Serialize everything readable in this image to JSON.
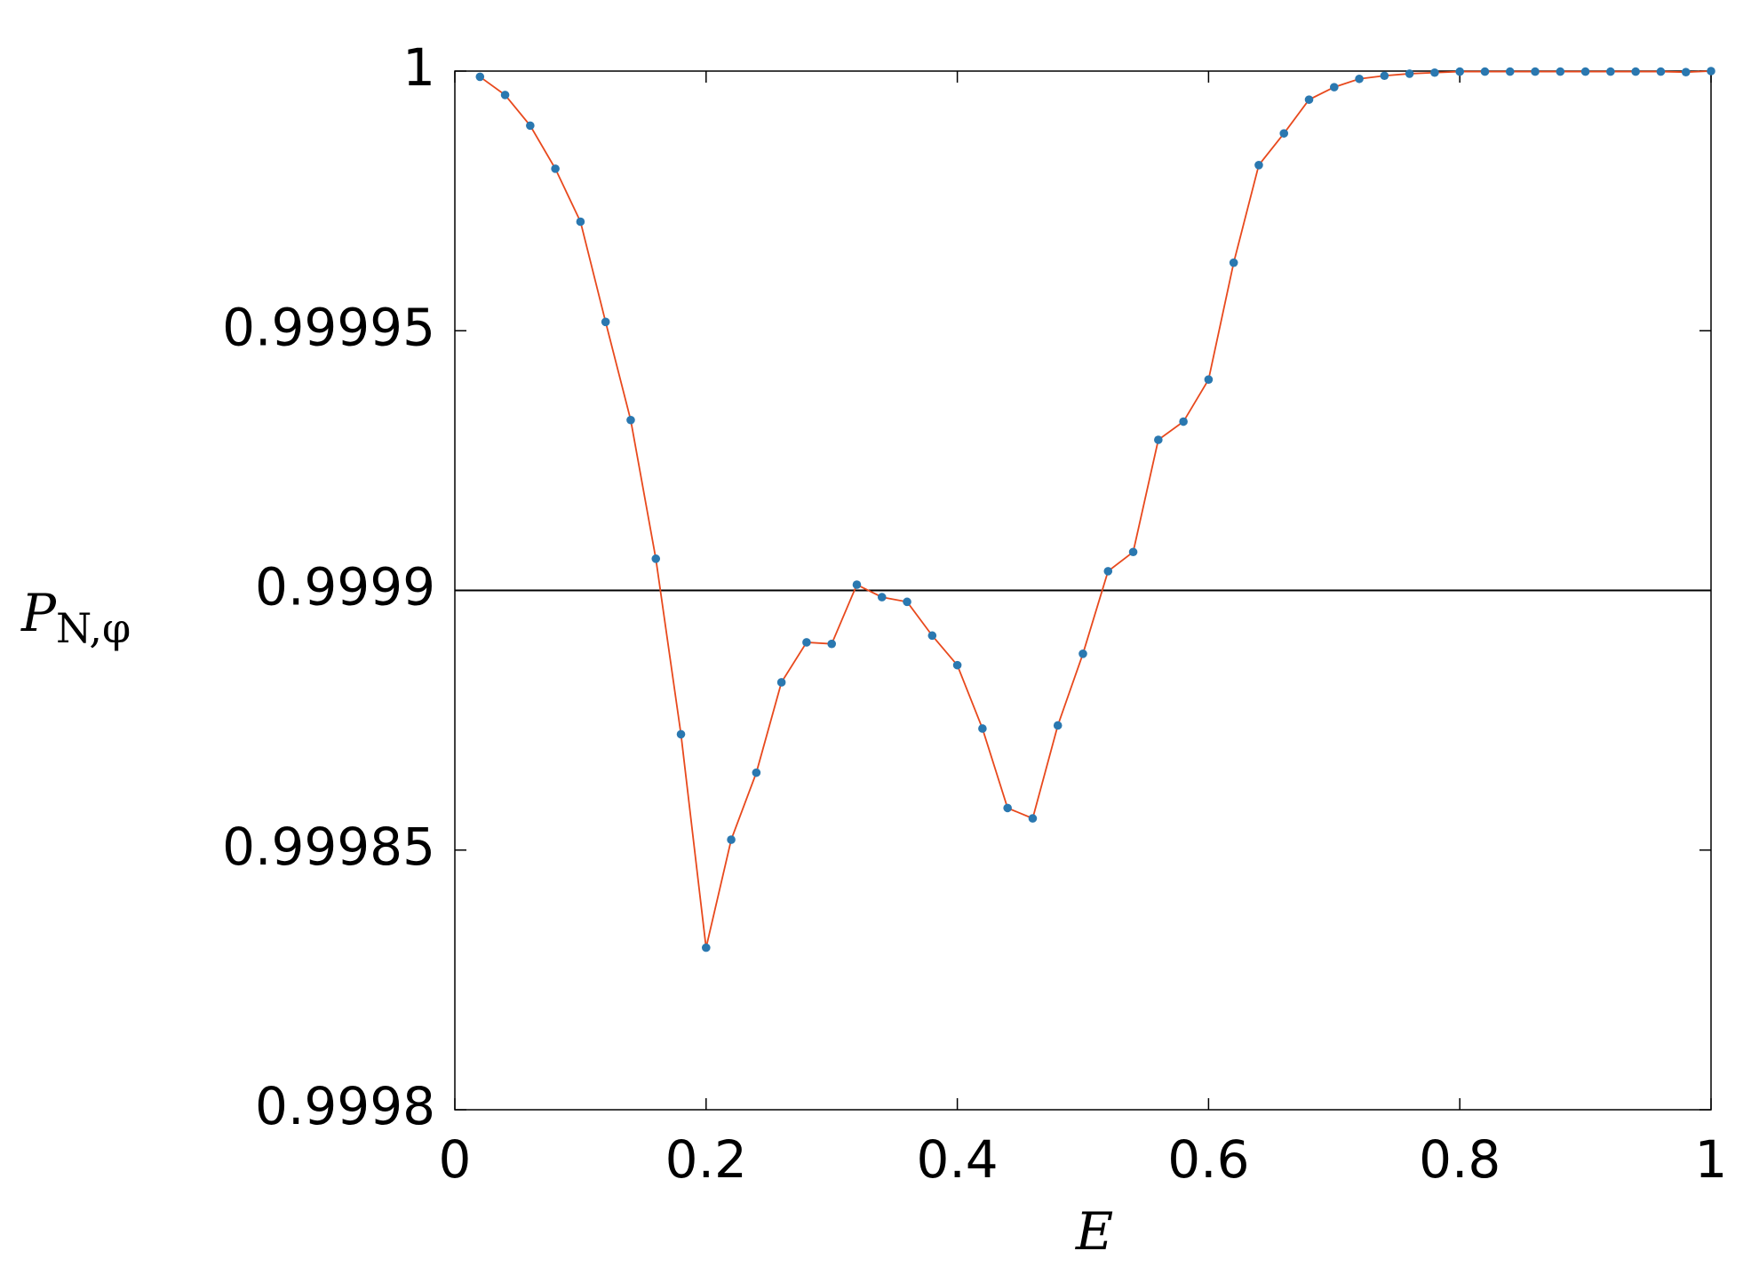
{
  "chart_data": {
    "type": "line",
    "xlabel": "E",
    "ylabel": "P",
    "ylabel_sub": "N,φ",
    "x": [
      0.02,
      0.04,
      0.06,
      0.08,
      0.1,
      0.12,
      0.14,
      0.16,
      0.18,
      0.2,
      0.22,
      0.24,
      0.26,
      0.28,
      0.3,
      0.32,
      0.34,
      0.36,
      0.38,
      0.4,
      0.42,
      0.44,
      0.46,
      0.48,
      0.5,
      0.52,
      0.54,
      0.56,
      0.58,
      0.6,
      0.62,
      0.64,
      0.66,
      0.68,
      0.7,
      0.72,
      0.74,
      0.76,
      0.78,
      0.8,
      0.82,
      0.84,
      0.86,
      0.88,
      0.9,
      0.92,
      0.94,
      0.96,
      0.98,
      1.0
    ],
    "series": [
      {
        "line_color": "#e8491d",
        "marker_color": "#2a78b0",
        "values": [
          0.9999989,
          0.9999954,
          0.9999895,
          0.9999812,
          0.999971,
          0.9999517,
          0.9999328,
          0.9999061,
          0.9998723,
          0.9998312,
          0.999852,
          0.9998649,
          0.9998823,
          0.99989,
          0.9998897,
          0.9999011,
          0.9998987,
          0.9998978,
          0.9998913,
          0.9998856,
          0.9998734,
          0.9998581,
          0.9998561,
          0.999874,
          0.9998878,
          0.9999037,
          0.9999074,
          0.999929,
          0.9999325,
          0.9999406,
          0.9999631,
          0.9999819,
          0.999988,
          0.9999945,
          0.9999969,
          0.9999985,
          0.9999991,
          0.9999995,
          0.9999997,
          0.9999999,
          0.9999999,
          0.9999999,
          0.9999999,
          0.9999999,
          0.9999999,
          0.9999999,
          0.9999999,
          0.9999999,
          0.9999998,
          1.0
        ]
      }
    ],
    "reference_line": 0.9999,
    "xlim": [
      0,
      1
    ],
    "xticks": [
      0,
      0.2,
      0.4,
      0.6,
      0.8,
      1
    ],
    "ylim": [
      0.9998,
      1
    ],
    "yticks": [
      0.9998,
      0.99985,
      0.9999,
      0.99995,
      1
    ]
  }
}
